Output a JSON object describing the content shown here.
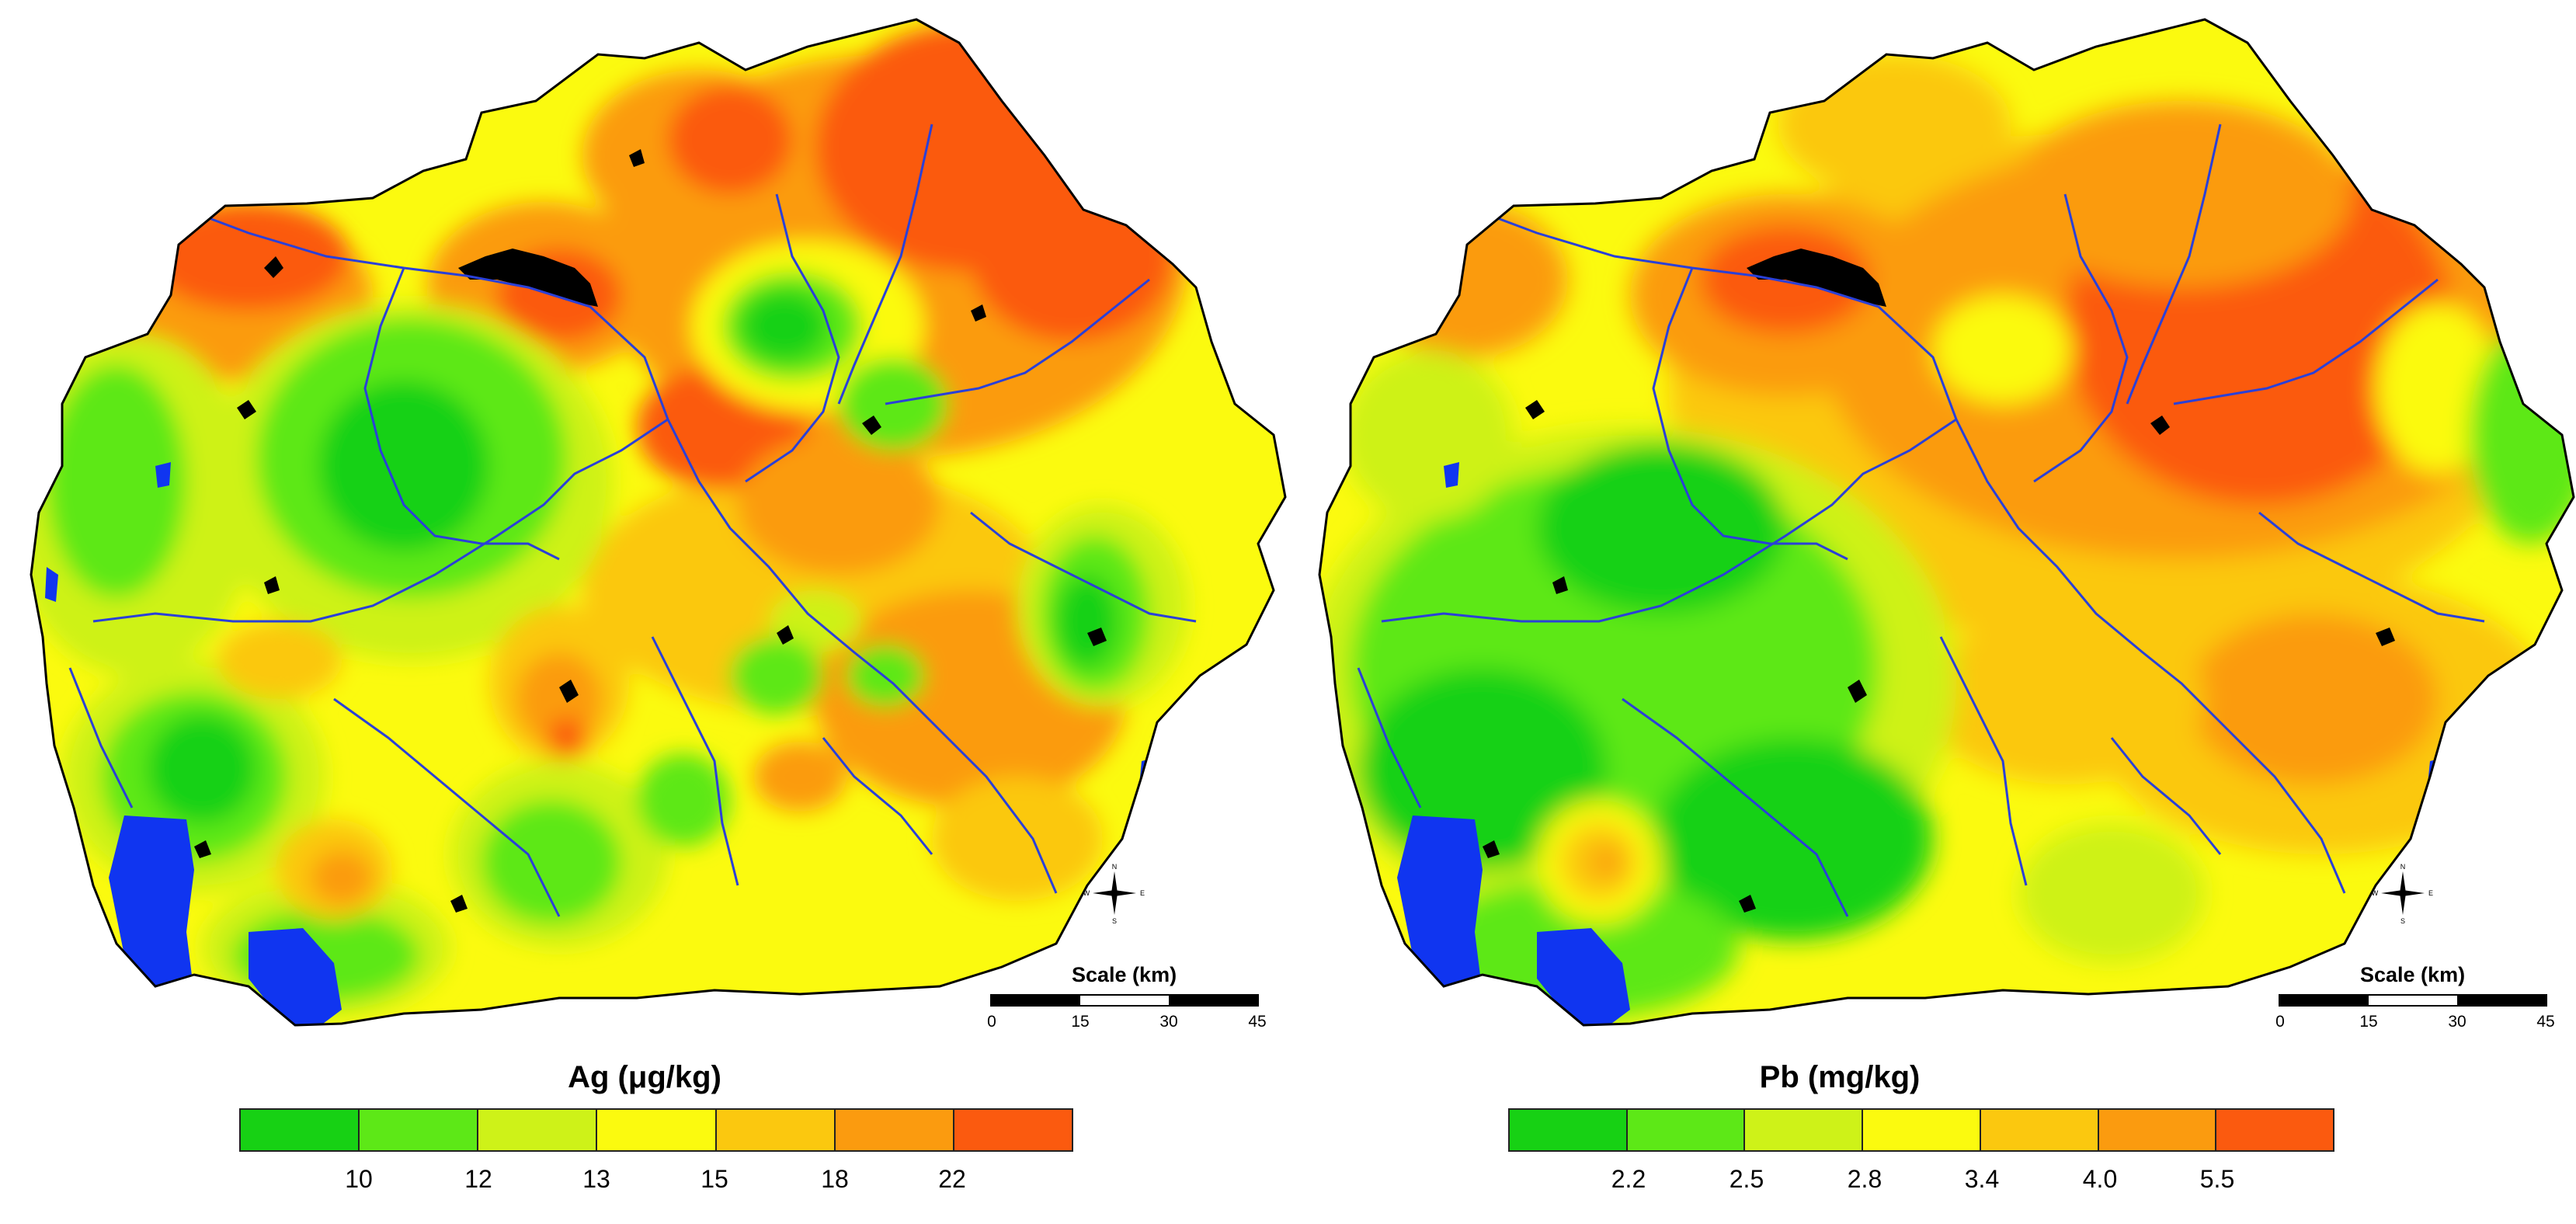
{
  "palette": {
    "band1": "#17d114",
    "band2": "#5de817",
    "band3": "#cef218",
    "band4": "#fbfa0f",
    "band5": "#fbc80f",
    "band6": "#fb9b0f",
    "band7": "#fb5a0f",
    "water": "#1035f0",
    "river": "#2a40d8",
    "urban": "#000000",
    "border": "#000000"
  },
  "panels": [
    {
      "element": "Ag",
      "legend": {
        "title": "Ag (μg/kg)",
        "class_breaks": [
          "10",
          "12",
          "13",
          "15",
          "18",
          "22"
        ]
      },
      "scale": {
        "title": "Scale (km)",
        "ticks": [
          "0",
          "15",
          "30",
          "45"
        ]
      },
      "compass": {
        "north": "N",
        "south": "S",
        "east": "E",
        "west": "W"
      }
    },
    {
      "element": "Pb",
      "legend": {
        "title": "Pb (mg/kg)",
        "class_breaks": [
          "2.2",
          "2.5",
          "2.8",
          "3.4",
          "4.0",
          "5.5"
        ]
      },
      "scale": {
        "title": "Scale (km)",
        "ticks": [
          "0",
          "15",
          "30",
          "45"
        ]
      },
      "compass": {
        "north": "N",
        "south": "S",
        "east": "E",
        "west": "W"
      }
    }
  ]
}
